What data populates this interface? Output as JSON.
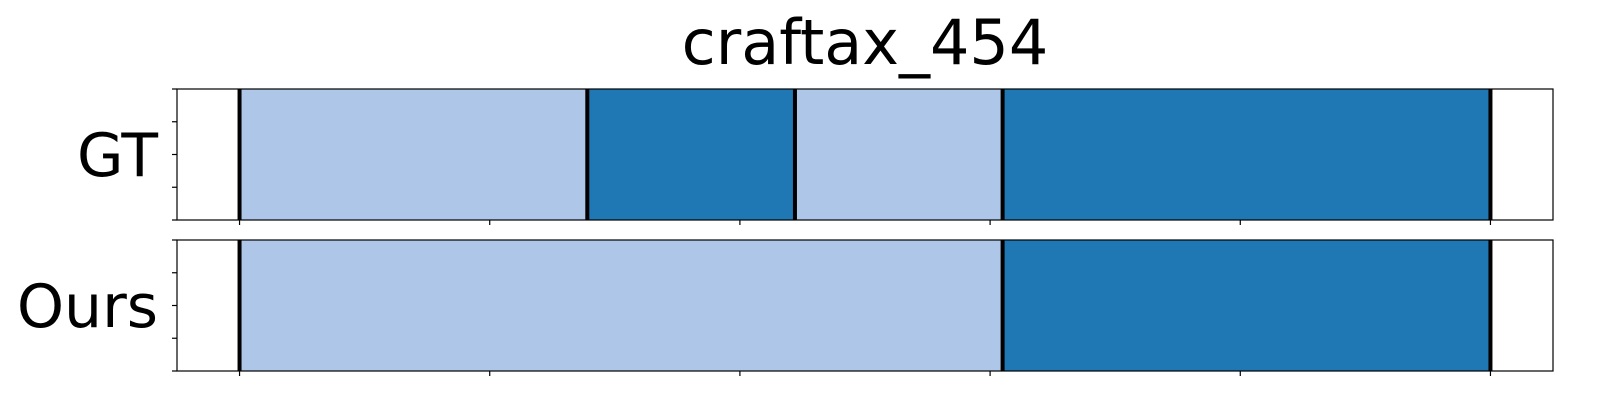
{
  "chart_data": {
    "type": "bar",
    "title": "craftax_454",
    "xlim": [
      -25,
      525
    ],
    "colors": {
      "light": "#aec7e8",
      "dark": "#1f77b4"
    },
    "rows": [
      {
        "label": "GT",
        "segments": [
          {
            "start": 0,
            "end": 139,
            "color": "light"
          },
          {
            "start": 139,
            "end": 222,
            "color": "dark"
          },
          {
            "start": 222,
            "end": 305,
            "color": "light"
          },
          {
            "start": 305,
            "end": 500,
            "color": "dark"
          }
        ],
        "boundaries": [
          0,
          139,
          222,
          305,
          500
        ]
      },
      {
        "label": "Ours",
        "segments": [
          {
            "start": 0,
            "end": 305,
            "color": "light"
          },
          {
            "start": 305,
            "end": 500,
            "color": "dark"
          }
        ],
        "boundaries": [
          0,
          305,
          500
        ]
      }
    ],
    "x_ticks": [
      0,
      100,
      200,
      300,
      400,
      500
    ],
    "y_ticks_per_row": 5,
    "grid": false
  }
}
